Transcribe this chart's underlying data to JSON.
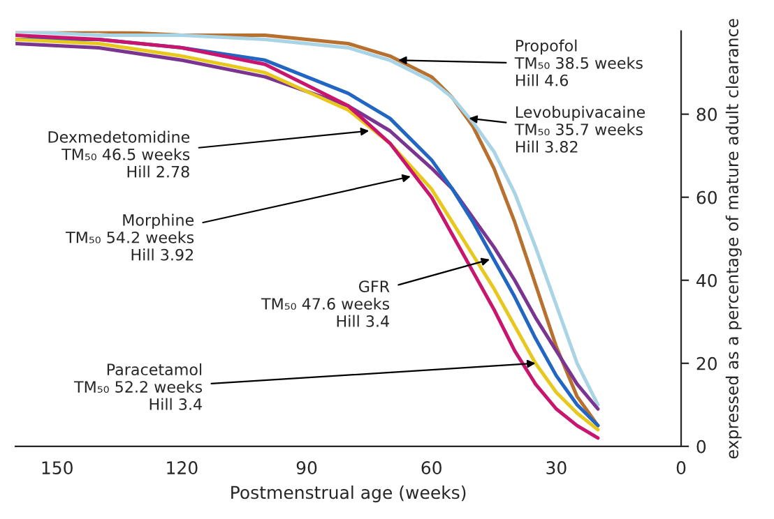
{
  "chart_data": {
    "type": "line",
    "xlabel": "Postmenstrual age (weeks)",
    "ylabel": "expressed as a percentage of mature adult clearance",
    "x": [
      20,
      25,
      30,
      35,
      40,
      45,
      50,
      55,
      60,
      70,
      80,
      100,
      120,
      140,
      160
    ],
    "series": [
      {
        "color": "#b8702e",
        "values": [
          5,
          12,
          24,
          39,
          54,
          67,
          77,
          84,
          89,
          94,
          97,
          99,
          99,
          100,
          100
        ]
      },
      {
        "color": "#a8d4e6",
        "values": [
          10,
          20,
          34,
          48,
          61,
          71,
          78,
          84,
          88,
          93,
          96,
          98,
          99,
          99,
          100
        ]
      },
      {
        "color": "#7a3590",
        "values": [
          9,
          15,
          23,
          31,
          40,
          48,
          55,
          62,
          67,
          76,
          82,
          89,
          93,
          96,
          97
        ]
      },
      {
        "color": "#2266c4",
        "values": [
          5,
          10,
          17,
          26,
          36,
          45,
          54,
          62,
          69,
          79,
          85,
          93,
          96,
          98,
          98
        ]
      },
      {
        "color": "#e8c81e",
        "values": [
          4,
          8,
          13,
          20,
          29,
          38,
          46,
          54,
          62,
          73,
          81,
          90,
          94,
          97,
          98
        ]
      },
      {
        "color": "#c8156e",
        "values": [
          2,
          5,
          9,
          15,
          23,
          33,
          42,
          51,
          60,
          73,
          82,
          92,
          96,
          98,
          99
        ]
      }
    ],
    "xlim": [
      160,
      0
    ],
    "xticks": [
      150,
      120,
      90,
      60,
      30,
      0
    ],
    "ylim": [
      0,
      100
    ],
    "yticks": [
      0,
      20,
      40,
      60,
      80
    ],
    "grid": false,
    "annotations": [
      {
        "text": "Propofol\nTM₅₀ 38.5 weeks\nHill 4.6",
        "x": 68,
        "y": 93
      },
      {
        "text": "Levobupivacaine\nTM₅₀ 35.7 weeks\nHill 3.82",
        "x": 51,
        "y": 79
      },
      {
        "text": "Dexmedetomidine\nTM₅₀ 46.5 weeks\nHill 2.78",
        "x": 75,
        "y": 76
      },
      {
        "text": "Morphine\nTM₅₀ 54.2 weeks\nHill 3.92",
        "x": 65,
        "y": 65
      },
      {
        "text": "GFR\nTM₅₀ 47.6 weeks\nHill 3.4",
        "x": 46,
        "y": 45
      },
      {
        "text": "Paracetamol\nTM₅₀ 52.2 weeks\nHill 3.4",
        "x": 35,
        "y": 20
      }
    ]
  }
}
